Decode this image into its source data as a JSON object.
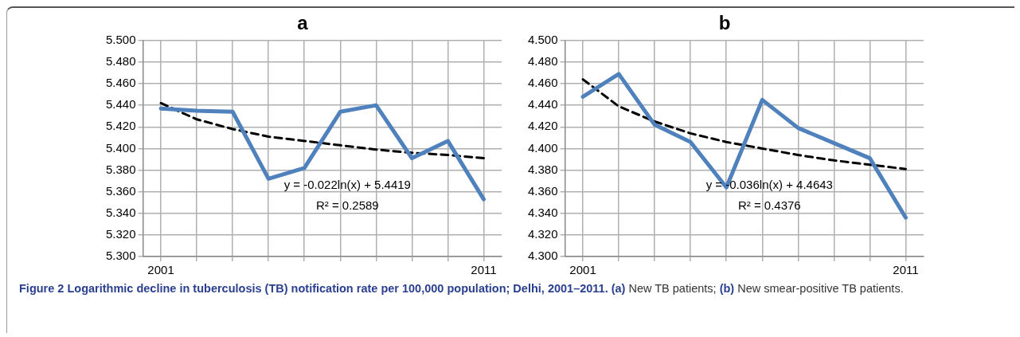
{
  "chart_data": [
    {
      "type": "line",
      "title": "a",
      "categories": [
        "2001",
        null,
        null,
        null,
        null,
        null,
        null,
        null,
        null,
        "2011"
      ],
      "series": [
        {
          "color": "#4f81bd",
          "values": [
            5.437,
            5.435,
            5.434,
            5.372,
            5.382,
            5.434,
            5.44,
            5.391,
            5.407,
            5.353
          ]
        },
        {
          "color": "#000000",
          "line_style": "dashed",
          "values": [
            5.442,
            5.427,
            5.418,
            5.411,
            5.407,
            5.403,
            5.399,
            5.396,
            5.394,
            5.391
          ]
        }
      ],
      "ylim": [
        5.3,
        5.5
      ],
      "yticks": [
        {
          "value": 5.3,
          "label": "5.300"
        },
        {
          "value": 5.32,
          "label": "5.320"
        },
        {
          "value": 5.34,
          "label": "5.340"
        },
        {
          "value": 5.36,
          "label": "5.360"
        },
        {
          "value": 5.38,
          "label": "5.380"
        },
        {
          "value": 5.4,
          "label": "5.400"
        },
        {
          "value": 5.42,
          "label": "5.420"
        },
        {
          "value": 5.44,
          "label": "5.440"
        },
        {
          "value": 5.46,
          "label": "5.460"
        },
        {
          "value": 5.48,
          "label": "5.480"
        },
        {
          "value": 5.5,
          "label": "5.500"
        }
      ],
      "grid": true,
      "legend": false,
      "marker": "none",
      "annotations": [
        "y = -0.022ln(x) + 5.4419",
        "R² = 0.2589"
      ]
    },
    {
      "type": "line",
      "title": "b",
      "categories": [
        "2001",
        null,
        null,
        null,
        null,
        null,
        null,
        null,
        null,
        "2011"
      ],
      "series": [
        {
          "color": "#4f81bd",
          "values": [
            4.448,
            4.469,
            4.422,
            4.406,
            4.364,
            4.445,
            4.419,
            4.405,
            4.391,
            4.336
          ]
        },
        {
          "color": "#000000",
          "line_style": "dashed",
          "values": [
            4.464,
            4.439,
            4.425,
            4.414,
            4.406,
            4.4,
            4.394,
            4.389,
            4.385,
            4.381
          ]
        }
      ],
      "ylim": [
        4.3,
        4.5
      ],
      "yticks": [
        {
          "value": 4.3,
          "label": "4.300"
        },
        {
          "value": 4.32,
          "label": "4.320"
        },
        {
          "value": 4.34,
          "label": "4.340"
        },
        {
          "value": 4.36,
          "label": "4.360"
        },
        {
          "value": 4.38,
          "label": "4.380"
        },
        {
          "value": 4.4,
          "label": "4.400"
        },
        {
          "value": 4.42,
          "label": "4.420"
        },
        {
          "value": 4.44,
          "label": "4.440"
        },
        {
          "value": 4.46,
          "label": "4.460"
        },
        {
          "value": 4.48,
          "label": "4.480"
        },
        {
          "value": 4.5,
          "label": "4.500"
        }
      ],
      "grid": true,
      "legend": false,
      "marker": "none",
      "annotations": [
        "y = -0.036ln(x) + 4.4643",
        "R² = 0.4376"
      ]
    },
    {
      "type": "other",
      "annotations": [
        "Figure 2 Logarithmic decline in tuberculosis (TB) notification rate per 100,000 population; Delhi, 2001–2011. (a)",
        "New TB patients;",
        "(b)",
        "New smear-positive TB patients."
      ]
    }
  ]
}
